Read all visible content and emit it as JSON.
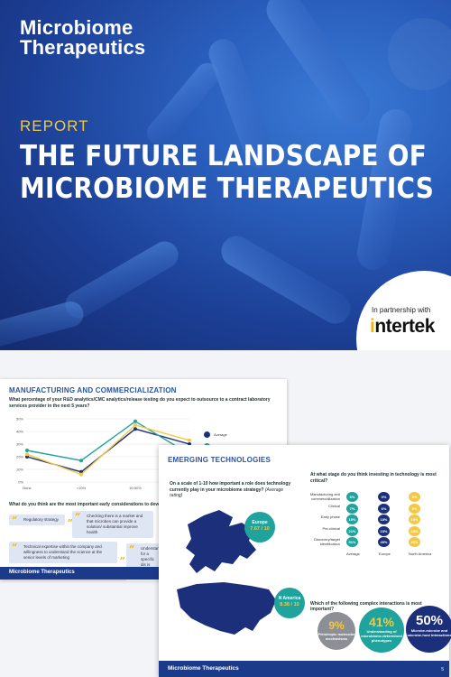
{
  "hero": {
    "brand_line1": "Microbiome",
    "brand_line2": "Therapeutics",
    "report_label": "REPORT",
    "title_line1": "THE FUTURE LANDSCAPE OF",
    "title_line2": "MICROBIOME THERAPEUTICS",
    "partner_text": "In partnership with",
    "partner_logo_pre": "i",
    "partner_logo_post": "ntertek",
    "colors": {
      "accent_yellow": "#f0c93e",
      "hero_blue": "#1c3f95"
    }
  },
  "back_page": {
    "section_title": "MANUFACTURING AND COMMERCIALIZATION",
    "question": "What percentage of your R&D analytics/CMC analytics/release testing do you expect to outsource to a contract laboratory services provider in the next 5 years?",
    "chart_data": {
      "type": "line",
      "categories": [
        "None",
        "<10%",
        "10-50%",
        ">50%"
      ],
      "yticks": [
        "50%",
        "40%",
        "30%",
        "20%",
        "10%",
        "0%"
      ],
      "ylim": [
        0,
        50
      ],
      "series": [
        {
          "name": "Average",
          "color": "#1b2f7a",
          "values": [
            20,
            8,
            42,
            30
          ]
        },
        {
          "name": "Europe",
          "color": "#1fa39c",
          "values": [
            25,
            17,
            48,
            22
          ]
        },
        {
          "name": "",
          "color": "#f5c842",
          "values": [
            22,
            6,
            45,
            33
          ]
        }
      ],
      "legend": [
        "Average",
        "Europe"
      ]
    },
    "question2": "What do you think are the most important early considerations to developing a s",
    "quotes": [
      "Regulatory strategy",
      "Checking there is a market and that microbes can provide a solution/ substantial improve health",
      "Technical expertise within the company and willingness to understand the science at the senior levels of marketing",
      "Understandin for a specific dis is currently being"
    ],
    "footer": "Microbiome Therapeutics"
  },
  "front_page": {
    "section_title": "EMERGING TECHNOLOGIES",
    "question1": "On a scale of 1-10 how important a role does technology currently play in your microbiome strategy?",
    "question1_note": "(Average rating)",
    "europe_label": "Europe",
    "europe_score": "7.67 / 10",
    "na_label": "N America",
    "na_score": "8.38 / 10",
    "question2": "At what stage do you think investing in technology is most critical?",
    "stages": [
      {
        "label": "Manufacturing and commercialization",
        "avg": "6%",
        "eu": "0%",
        "na": "8%"
      },
      {
        "label": "Clinical",
        "avg": "7%",
        "eu": "6%",
        "na": "8%"
      },
      {
        "label": "Early phase",
        "avg": "15%",
        "eu": "18%",
        "na": "10%"
      },
      {
        "label": "Pre-clinical",
        "avg": "21%",
        "eu": "23%",
        "na": "28%"
      },
      {
        "label": "Discovery/target identification",
        "avg": "51%",
        "eu": "49%",
        "na": "49%"
      }
    ],
    "columns": [
      "Average",
      "Europe",
      "North America"
    ],
    "question3": "Which of the following complex interactions is most important?",
    "interactions": [
      {
        "pct": "9%",
        "desc": "Pleiotropic molecular mechanisms"
      },
      {
        "pct": "41%",
        "desc": "Understanding of microbiome-determined phenotypes"
      },
      {
        "pct": "50%",
        "desc": "Microbe-microbe and microbe-host interactions"
      }
    ],
    "footer": "Microbiome Therapeutics",
    "page_number": "5"
  }
}
